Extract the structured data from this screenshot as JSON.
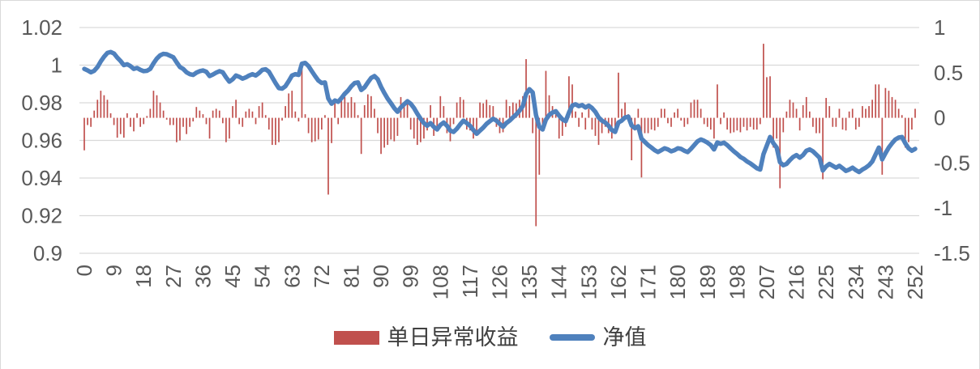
{
  "chart_data": {
    "type": "combo",
    "title": "",
    "x_tick_labels": [
      0,
      9,
      18,
      27,
      36,
      45,
      54,
      63,
      72,
      81,
      90,
      99,
      108,
      117,
      126,
      135,
      144,
      153,
      162,
      171,
      180,
      189,
      198,
      207,
      216,
      225,
      234,
      243,
      252
    ],
    "left_axis": {
      "min": 0.9,
      "max": 1.02,
      "ticks": [
        "1.02",
        "1",
        "0.98",
        "0.96",
        "0.94",
        "0.92",
        "0.9"
      ]
    },
    "right_axis": {
      "min": -1.5,
      "max": 1,
      "ticks": [
        "1",
        "0.5",
        "0",
        "-0.5",
        "-1",
        "-1.5"
      ]
    },
    "grid": true,
    "legend_position": "bottom",
    "colors": {
      "grid": "#d9d9d9",
      "axis_text": "#595959",
      "background": "#ffffff"
    },
    "series": [
      {
        "name": "单日异常收益",
        "type": "bar",
        "axis": "right",
        "color": "#c0504d",
        "values": [
          -0.36,
          -0.08,
          -0.1,
          0.08,
          0.2,
          0.3,
          0.25,
          0.2,
          0.05,
          -0.08,
          -0.22,
          -0.18,
          -0.22,
          0.05,
          -0.1,
          -0.15,
          0.05,
          -0.1,
          -0.07,
          0.02,
          0.1,
          0.3,
          0.25,
          0.17,
          0.08,
          -0.02,
          -0.08,
          -0.08,
          -0.27,
          -0.25,
          -0.1,
          -0.18,
          -0.1,
          -0.04,
          0.12,
          0.08,
          0.04,
          -0.07,
          -0.23,
          0.08,
          0.1,
          0.08,
          -0.06,
          -0.27,
          -0.23,
          0.13,
          0.2,
          -0.07,
          -0.1,
          0.07,
          0.1,
          0.07,
          -0.07,
          0.13,
          0.17,
          0.03,
          -0.13,
          -0.3,
          -0.3,
          -0.27,
          -0.03,
          0.13,
          0.27,
          0.3,
          0.07,
          -0.04,
          0.6,
          0.04,
          -0.17,
          -0.27,
          -0.26,
          -0.24,
          -0.13,
          0.03,
          -0.85,
          -0.28,
          0.17,
          -0.07,
          0.2,
          0.23,
          0.17,
          0.23,
          0.17,
          0.03,
          -0.4,
          0.14,
          0.26,
          0.24,
          0.1,
          -0.17,
          -0.4,
          -0.33,
          -0.3,
          -0.24,
          -0.26,
          -0.2,
          0.23,
          0.17,
          0.16,
          -0.13,
          -0.23,
          -0.3,
          -0.27,
          -0.23,
          -0.14,
          0.14,
          -0.2,
          -0.14,
          0.24,
          0.13,
          -0.17,
          -0.26,
          -0.07,
          0.17,
          0.23,
          0.2,
          -0.13,
          -0.14,
          -0.23,
          -0.2,
          0.17,
          0.16,
          0.2,
          0.14,
          0.13,
          -0.1,
          -0.17,
          -0.16,
          0.2,
          0.13,
          0.17,
          0.16,
          0.2,
          0.24,
          0.65,
          0.25,
          -0.17,
          -1.2,
          -0.63,
          -0.14,
          0.52,
          0.25,
          0.13,
          0.07,
          -0.23,
          -0.2,
          -0.1,
          0.46,
          0.37,
          0.07,
          -0.1,
          0.06,
          -0.13,
          0.1,
          -0.13,
          -0.2,
          -0.3,
          -0.17,
          -0.1,
          -0.17,
          -0.23,
          -0.1,
          0.5,
          0.1,
          0.17,
          0.04,
          -0.47,
          -0.14,
          0.1,
          -0.66,
          -0.17,
          -0.17,
          -0.13,
          -0.14,
          -0.1,
          0.1,
          0.1,
          -0.06,
          -0.1,
          0.06,
          0.1,
          -0.03,
          -0.1,
          -0.07,
          0.17,
          0.2,
          0.2,
          0.1,
          -0.07,
          -0.1,
          -0.13,
          -0.23,
          0.37,
          -0.07,
          0.06,
          -0.13,
          -0.17,
          -0.16,
          -0.14,
          -0.16,
          -0.1,
          -0.14,
          -0.1,
          -0.13,
          -0.13,
          -0.07,
          0.82,
          0.45,
          0.46,
          -0.33,
          -0.23,
          -0.78,
          -0.16,
          0.07,
          0.2,
          0.17,
          0.1,
          -0.14,
          0.14,
          0.23,
          0.07,
          -0.1,
          -0.17,
          -0.17,
          -0.68,
          0.22,
          0.13,
          -0.1,
          -0.1,
          0.1,
          -0.13,
          -0.14,
          0.07,
          0.1,
          -0.13,
          -0.1,
          0.13,
          0.1,
          0.13,
          0.2,
          0.37,
          0.37,
          -0.63,
          0.33,
          0.3,
          0.23,
          0.2,
          0.1,
          0.03,
          -0.33,
          -0.27,
          -0.13,
          0.1
        ]
      },
      {
        "name": "净值",
        "type": "line",
        "axis": "left",
        "color": "#4f81bd",
        "values": [
          0.998,
          0.9972,
          0.9962,
          0.997,
          0.999,
          1.002,
          1.0045,
          1.0065,
          1.007,
          1.0062,
          1.004,
          1.0022,
          1.0,
          1.0005,
          0.9995,
          0.998,
          0.9985,
          0.9975,
          0.9968,
          0.997,
          0.998,
          1.001,
          1.0035,
          1.0052,
          1.006,
          1.0058,
          1.005,
          1.0042,
          1.0015,
          0.999,
          0.998,
          0.9962,
          0.9952,
          0.9948,
          0.996,
          0.9968,
          0.9972,
          0.9965,
          0.9942,
          0.995,
          0.996,
          0.9968,
          0.9962,
          0.9935,
          0.9912,
          0.9925,
          0.9945,
          0.9938,
          0.9928,
          0.9935,
          0.9945,
          0.9952,
          0.9945,
          0.9958,
          0.9975,
          0.9978,
          0.9965,
          0.9935,
          0.9905,
          0.9878,
          0.9875,
          0.9888,
          0.9915,
          0.9945,
          0.9952,
          0.9948,
          1.0008,
          1.0012,
          0.9995,
          0.9968,
          0.9942,
          0.9918,
          0.9905,
          0.9908,
          0.9823,
          0.9795,
          0.9812,
          0.9805,
          0.9825,
          0.9848,
          0.9865,
          0.9888,
          0.9905,
          0.9908,
          0.9868,
          0.9882,
          0.9908,
          0.9932,
          0.9942,
          0.9925,
          0.9885,
          0.9852,
          0.9822,
          0.9798,
          0.9772,
          0.9752,
          0.9775,
          0.9792,
          0.9808,
          0.9795,
          0.9772,
          0.9742,
          0.9715,
          0.9692,
          0.9678,
          0.9692,
          0.9672,
          0.9658,
          0.9682,
          0.9695,
          0.9678,
          0.9652,
          0.9645,
          0.9662,
          0.9685,
          0.9705,
          0.9692,
          0.9678,
          0.9655,
          0.9635,
          0.9652,
          0.9668,
          0.9688,
          0.9702,
          0.9715,
          0.9705,
          0.9688,
          0.9672,
          0.9692,
          0.9705,
          0.9722,
          0.9738,
          0.9758,
          0.9782,
          0.9847,
          0.9872,
          0.9855,
          0.9735,
          0.9672,
          0.9658,
          0.971,
          0.9735,
          0.9748,
          0.9755,
          0.9732,
          0.9712,
          0.9702,
          0.9748,
          0.9785,
          0.9792,
          0.9782,
          0.9788,
          0.9775,
          0.9785,
          0.9772,
          0.9752,
          0.9722,
          0.9705,
          0.9695,
          0.9678,
          0.9655,
          0.9645,
          0.9695,
          0.9705,
          0.9722,
          0.9726,
          0.9679,
          0.9665,
          0.9675,
          0.9609,
          0.9592,
          0.9575,
          0.9562,
          0.9548,
          0.9538,
          0.9548,
          0.9558,
          0.9552,
          0.9542,
          0.9548,
          0.9558,
          0.9555,
          0.9545,
          0.9538,
          0.9555,
          0.9575,
          0.9595,
          0.9605,
          0.9598,
          0.9588,
          0.9575,
          0.9552,
          0.9589,
          0.9582,
          0.9588,
          0.9575,
          0.9558,
          0.9542,
          0.9528,
          0.9512,
          0.9502,
          0.9488,
          0.9478,
          0.9465,
          0.9452,
          0.9445,
          0.9527,
          0.9572,
          0.9618,
          0.9585,
          0.9562,
          0.9484,
          0.9468,
          0.9475,
          0.9495,
          0.9512,
          0.9522,
          0.9508,
          0.9522,
          0.9545,
          0.9552,
          0.9542,
          0.9525,
          0.9508,
          0.944,
          0.9462,
          0.9475,
          0.9465,
          0.9455,
          0.9465,
          0.9452,
          0.9438,
          0.9445,
          0.9455,
          0.9442,
          0.9432,
          0.9445,
          0.9455,
          0.9468,
          0.9488,
          0.9525,
          0.9562,
          0.9499,
          0.9532,
          0.9562,
          0.9585,
          0.9605,
          0.9615,
          0.9618,
          0.9585,
          0.9558,
          0.9545,
          0.9555
        ]
      }
    ]
  }
}
